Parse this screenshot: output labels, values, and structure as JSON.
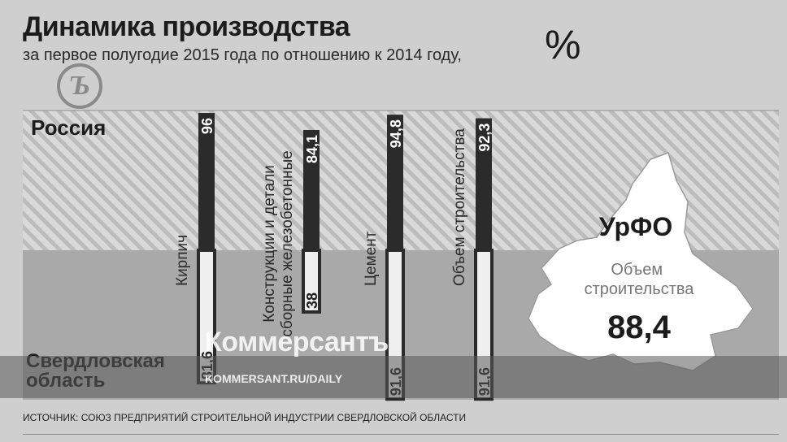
{
  "header": {
    "title": "Динамика производства",
    "subtitle": "за первое полугодие 2015 года по отношению к 2014 году,",
    "unit": "%"
  },
  "logo_glyph": "Ъ",
  "chart_data": {
    "type": "bar",
    "regions": [
      "Россия",
      "Свердловская область"
    ],
    "categories": [
      "Кирпич",
      "Конструкции и детали сборные железобетонные",
      "Цемент",
      "Объем строительства"
    ],
    "series": [
      {
        "name": "Россия",
        "values": [
          96,
          84.1,
          94.8,
          92.3
        ],
        "labels": [
          "96",
          "84,1",
          "94,8",
          "92,3"
        ]
      },
      {
        "name": "Свердловская область",
        "values": [
          81.6,
          38,
          91.6,
          91.6
        ],
        "labels": [
          "81,6",
          "38",
          "91,6",
          "91,6"
        ]
      }
    ]
  },
  "urfo": {
    "name": "УрФО",
    "metric": "Объем строительства",
    "value": "88,4"
  },
  "source": "ИСТОЧНИК: СОЮЗ ПРЕДПРИЯТИЙ СТРОИТЕЛЬНОЙ ИНДУСТРИИ СВЕРДЛОВСКОЙ ОБЛАСТИ",
  "brand": {
    "name": "Коммерсантъ",
    "url": "KOMMERSANT.RU/DAILY"
  },
  "colors": {
    "russia_bar": "#2b2b2b",
    "sverdlovsk_bar": "#efefef",
    "hatch_light": "#dcdcdc",
    "hatch_dark": "#b9b9b9",
    "lower_band": "#a9a9a9",
    "map_fill": "#ffffff"
  }
}
